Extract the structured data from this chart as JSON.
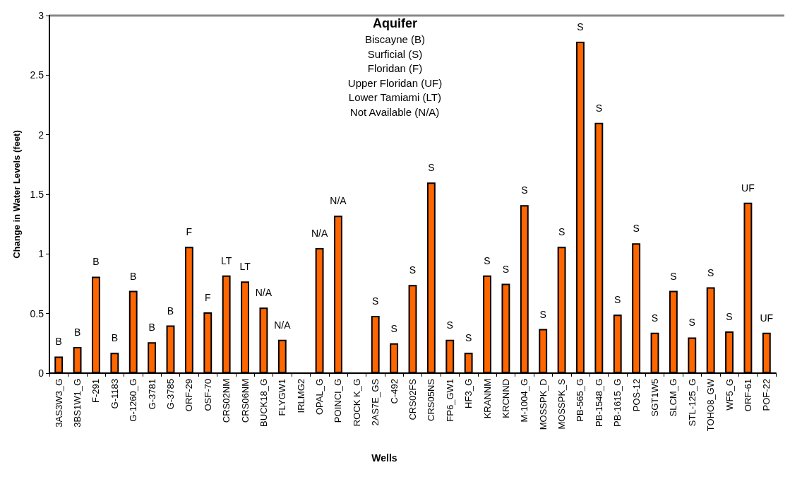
{
  "chart_data": {
    "type": "bar",
    "xlabel": "Wells",
    "ylabel": "Change in Water Levels (feet)",
    "categories": [
      "3AS3W3_G",
      "3BS1W1_G",
      "F-291",
      "G-1183",
      "G-1260_G",
      "G-3781",
      "G-3785",
      "ORF-29",
      "OSF-70",
      "CRS02NM",
      "CRS06NM",
      "BUCK18_G",
      "FLYGW1",
      "IRLMG2",
      "OPAL_G",
      "POINCI_G",
      "ROCK K_G",
      "2AS7E_GS",
      "C-492",
      "CRS02FS",
      "CRS05NS",
      "FP6_GW1",
      "HF3_G",
      "KRANNM",
      "KRCNND",
      "M-1004_G",
      "MOSSPK_D",
      "MOSSPK_S",
      "PB-565_G",
      "PB-1548_G",
      "PB-1615_G",
      "POS-12",
      "SGT1W5",
      "SLCM_G",
      "STL-125_G",
      "TOHO8_GW",
      "WF5_G",
      "ORF-61",
      "POF-22"
    ],
    "values": [
      0.14,
      0.22,
      0.81,
      0.17,
      0.69,
      0.26,
      0.4,
      1.06,
      0.51,
      0.82,
      0.77,
      0.55,
      0.28,
      null,
      1.05,
      1.32,
      null,
      0.48,
      0.25,
      0.74,
      1.6,
      0.28,
      0.17,
      0.82,
      0.75,
      1.41,
      0.37,
      1.06,
      2.78,
      2.1,
      0.49,
      1.09,
      0.34,
      0.69,
      0.3,
      0.72,
      0.35,
      1.43,
      0.34
    ],
    "value_labels": [
      "B",
      "B",
      "B",
      "B",
      "B",
      "B",
      "B",
      "F",
      "F",
      "LT",
      "LT",
      "N/A",
      "N/A",
      null,
      "N/A",
      "N/A",
      null,
      "S",
      "S",
      "S",
      "S",
      "S",
      "S",
      "S",
      "S",
      "S",
      "S",
      "S",
      "S",
      "S",
      "S",
      "S",
      "S",
      "S",
      "S",
      "S",
      "S",
      "UF",
      "UF"
    ],
    "color": "#ff6600",
    "ylim": [
      0,
      3
    ],
    "yticks": [
      0,
      0.5,
      1,
      1.5,
      2,
      2.5,
      3
    ],
    "annotations": [
      "Aquifer",
      "Biscayne (B)",
      "Surficial (S)",
      "Floridan (F)",
      "Upper Floridan (UF)",
      "Lower Tamiami (LT)",
      "Not Available (N/A)"
    ]
  }
}
